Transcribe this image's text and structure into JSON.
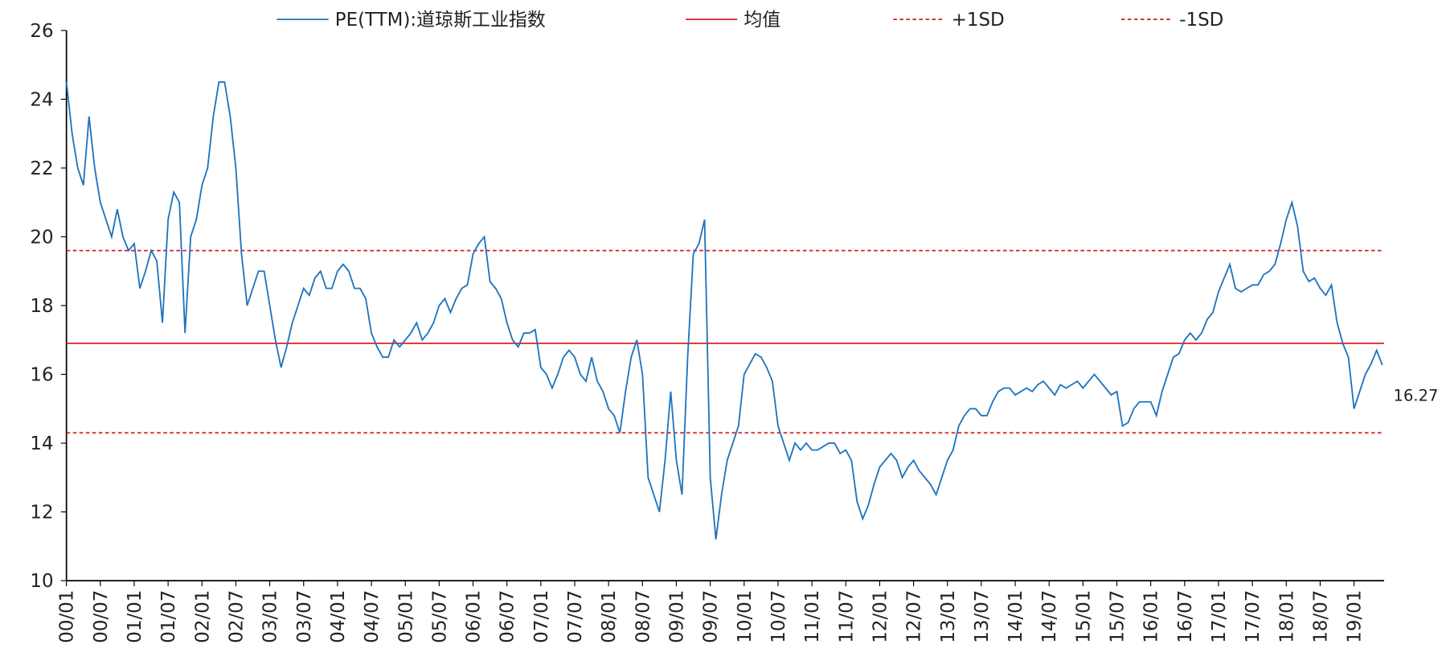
{
  "chart_data": {
    "type": "line",
    "categories": [
      "00/01",
      null,
      null,
      null,
      null,
      null,
      "00/07",
      null,
      null,
      null,
      null,
      null,
      "01/01",
      null,
      null,
      null,
      null,
      null,
      "01/07",
      null,
      null,
      null,
      null,
      null,
      "02/01",
      null,
      null,
      null,
      null,
      null,
      "02/07",
      null,
      null,
      null,
      null,
      null,
      "03/01",
      null,
      null,
      null,
      null,
      null,
      "03/07",
      null,
      null,
      null,
      null,
      null,
      "04/01",
      null,
      null,
      null,
      null,
      null,
      "04/07",
      null,
      null,
      null,
      null,
      null,
      "05/01",
      null,
      null,
      null,
      null,
      null,
      "05/07",
      null,
      null,
      null,
      null,
      null,
      "06/01",
      null,
      null,
      null,
      null,
      null,
      "06/07",
      null,
      null,
      null,
      null,
      null,
      "07/01",
      null,
      null,
      null,
      null,
      null,
      "07/07",
      null,
      null,
      null,
      null,
      null,
      "08/01",
      null,
      null,
      null,
      null,
      null,
      "08/07",
      null,
      null,
      null,
      null,
      null,
      "09/01",
      null,
      null,
      null,
      null,
      null,
      "09/07",
      null,
      null,
      null,
      null,
      null,
      "10/01",
      null,
      null,
      null,
      null,
      null,
      "10/07",
      null,
      null,
      null,
      null,
      null,
      "11/01",
      null,
      null,
      null,
      null,
      null,
      "11/07",
      null,
      null,
      null,
      null,
      null,
      "12/01",
      null,
      null,
      null,
      null,
      null,
      "12/07",
      null,
      null,
      null,
      null,
      null,
      "13/01",
      null,
      null,
      null,
      null,
      null,
      "13/07",
      null,
      null,
      null,
      null,
      null,
      "14/01",
      null,
      null,
      null,
      null,
      null,
      "14/07",
      null,
      null,
      null,
      null,
      null,
      "15/01",
      null,
      null,
      null,
      null,
      null,
      "15/07",
      null,
      null,
      null,
      null,
      null,
      "16/01",
      null,
      null,
      null,
      null,
      null,
      "16/07",
      null,
      null,
      null,
      null,
      null,
      "17/01",
      null,
      null,
      null,
      null,
      null,
      "17/07",
      null,
      null,
      null,
      null,
      null,
      "18/01",
      null,
      null,
      null,
      null,
      null,
      "18/07",
      null,
      null,
      null,
      null,
      null,
      "19/01",
      null,
      null,
      null,
      null,
      null
    ],
    "series": [
      {
        "name": "PE(TTM):道琼斯工业指数",
        "color": "#1f74bd",
        "values": [
          24.5,
          23,
          22,
          21.5,
          23.5,
          22,
          21,
          20.5,
          20,
          20.8,
          20,
          19.6,
          19.8,
          18.5,
          19,
          19.6,
          19.3,
          17.5,
          20.5,
          21.3,
          21,
          17.2,
          20,
          20.5,
          21.5,
          22,
          23.5,
          24.5,
          24.5,
          23.5,
          22,
          19.5,
          18,
          18.5,
          19,
          19,
          18,
          17,
          16.2,
          16.8,
          17.5,
          18,
          18.5,
          18.3,
          18.8,
          19,
          18.5,
          18.5,
          19,
          19.2,
          19,
          18.5,
          18.5,
          18.2,
          17.2,
          16.8,
          16.5,
          16.5,
          17,
          16.8,
          17,
          17.2,
          17.5,
          17,
          17.2,
          17.5,
          18,
          18.2,
          17.8,
          18.2,
          18.5,
          18.6,
          19.5,
          19.8,
          20,
          18.7,
          18.5,
          18.2,
          17.5,
          17,
          16.8,
          17.2,
          17.2,
          17.3,
          16.2,
          16,
          15.6,
          16,
          16.5,
          16.7,
          16.5,
          16,
          15.8,
          16.5,
          15.8,
          15.5,
          15,
          14.8,
          14.3,
          15.5,
          16.5,
          17,
          16,
          13,
          12.5,
          12,
          13.5,
          15.5,
          13.5,
          12.5,
          16.5,
          19.5,
          19.8,
          20.5,
          13,
          11.2,
          12.5,
          13.5,
          14,
          14.5,
          16,
          16.3,
          16.6,
          16.5,
          16.2,
          15.8,
          14.5,
          14,
          13.5,
          14,
          13.8,
          14,
          13.8,
          13.8,
          13.9,
          14,
          14,
          13.7,
          13.8,
          13.5,
          12.3,
          11.8,
          12.2,
          12.8,
          13.3,
          13.5,
          13.7,
          13.5,
          13,
          13.3,
          13.5,
          13.2,
          13,
          12.8,
          12.5,
          13,
          13.5,
          13.8,
          14.5,
          14.8,
          15,
          15,
          14.8,
          14.8,
          15.2,
          15.5,
          15.6,
          15.6,
          15.4,
          15.5,
          15.6,
          15.5,
          15.7,
          15.8,
          15.6,
          15.4,
          15.7,
          15.6,
          15.7,
          15.8,
          15.6,
          15.8,
          16,
          15.8,
          15.6,
          15.4,
          15.5,
          14.5,
          14.6,
          15,
          15.2,
          15.2,
          15.2,
          14.8,
          15.5,
          16,
          16.5,
          16.6,
          17,
          17.2,
          17,
          17.2,
          17.6,
          17.8,
          18.4,
          18.8,
          19.2,
          18.5,
          18.4,
          18.5,
          18.6,
          18.6,
          18.9,
          19,
          19.2,
          19.8,
          20.5,
          21,
          20.3,
          19,
          18.7,
          18.8,
          18.5,
          18.3,
          18.6,
          17.5,
          16.9,
          16.5,
          15,
          15.5,
          16,
          16.3,
          16.7,
          16.27
        ]
      }
    ],
    "value_labels": {
      "series": 0,
      "index": 233,
      "label": "16.27"
    },
    "reference_lines": [
      {
        "name": "均值",
        "value": 16.9,
        "color": "#e0201f",
        "dashed": false
      },
      {
        "name": "+1SD",
        "value": 19.6,
        "color": "#d0201f",
        "dashed": true
      },
      {
        "name": "-1SD",
        "value": 14.3,
        "color": "#d0201f",
        "dashed": true
      }
    ],
    "ylim": [
      10,
      26
    ],
    "yticks": [
      10,
      12,
      14,
      16,
      18,
      20,
      22,
      24,
      26
    ],
    "legend": "top",
    "grid": false
  }
}
